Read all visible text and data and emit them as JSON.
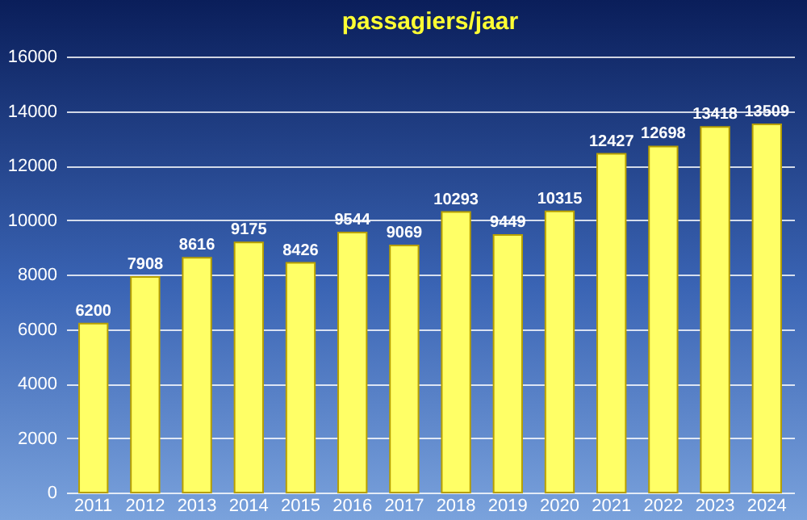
{
  "chart_data": {
    "type": "bar",
    "title": "passagiers/jaar",
    "categories": [
      "2011",
      "2012",
      "2013",
      "2014",
      "2015",
      "2016",
      "2017",
      "2018",
      "2019",
      "2020",
      "2021",
      "2022",
      "2023",
      "2024"
    ],
    "values": [
      6200,
      7908,
      8616,
      9175,
      8426,
      9544,
      9069,
      10293,
      9449,
      10315,
      12427,
      12698,
      13418,
      13509
    ],
    "color": "#ffff66",
    "data_labels": true,
    "grid": "y",
    "ylim": [
      0,
      16000
    ],
    "yticks": [
      0,
      2000,
      4000,
      6000,
      8000,
      10000,
      12000,
      14000,
      16000
    ]
  }
}
